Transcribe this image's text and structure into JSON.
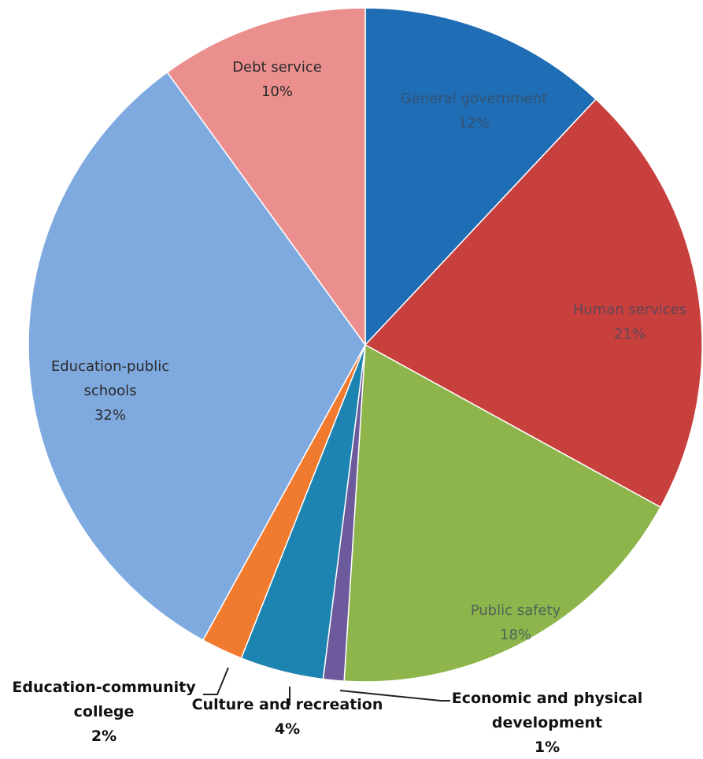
{
  "chart_data": {
    "type": "pie",
    "categories": [
      "General government",
      "Human services",
      "Public safety",
      "Economic and physical development",
      "Culture and recreation",
      "Education-community college",
      "Education-public schools",
      "Debt service"
    ],
    "values": [
      12,
      21,
      18,
      1,
      4,
      2,
      32,
      10
    ],
    "value_labels": [
      "12%",
      "21%",
      "18%",
      "1%",
      "4%",
      "2%",
      "32%",
      "10%"
    ],
    "colors": [
      "#1f6db4",
      "#c8403d",
      "#8db54b",
      "#6c5a9c",
      "#1d83b0",
      "#f07a2e",
      "#7faae0",
      "#eb8f8e"
    ]
  }
}
